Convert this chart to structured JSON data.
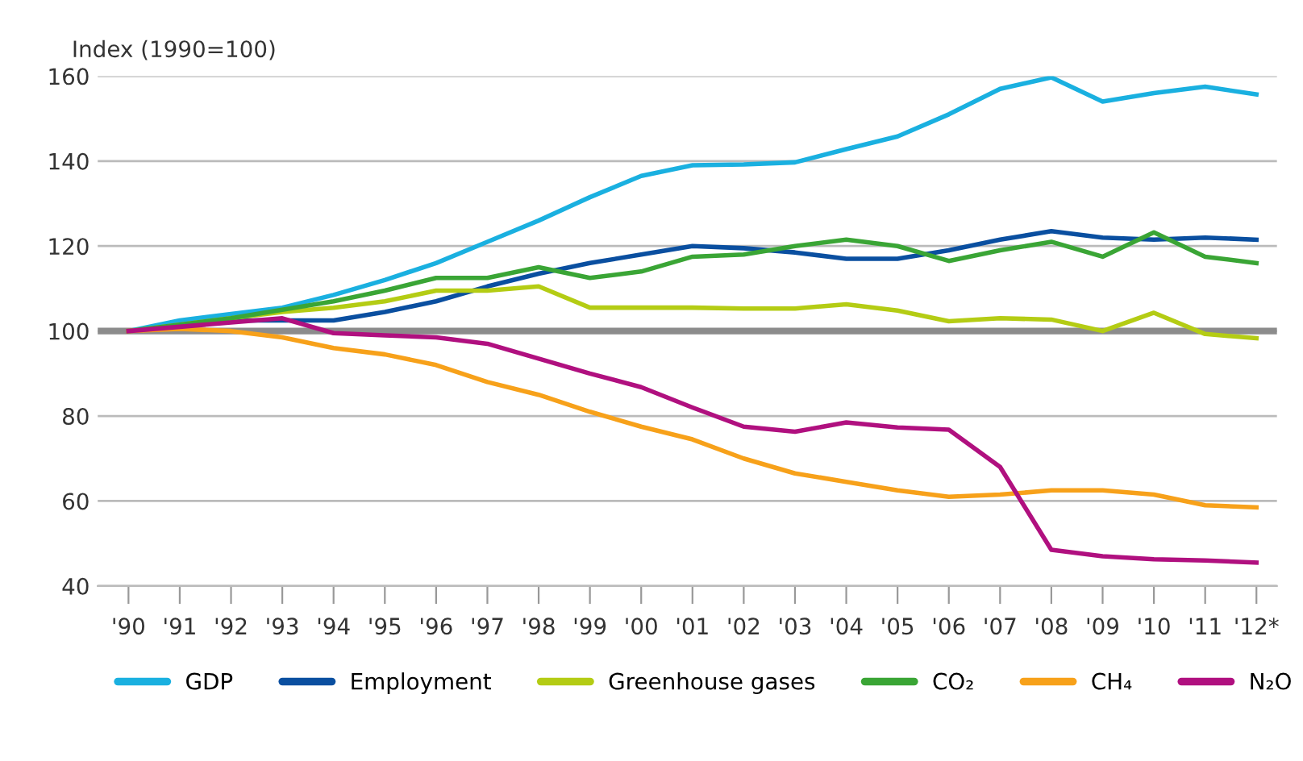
{
  "chart_data": {
    "type": "line",
    "ylabel": "Index (1990=100)",
    "categories": [
      "'90",
      "'91",
      "'92",
      "'93",
      "'94",
      "'95",
      "'96",
      "'97",
      "'98",
      "'99",
      "'00",
      "'01",
      "'02",
      "'03",
      "'04",
      "'05",
      "'06",
      "'07",
      "'08",
      "'09",
      "'10",
      "'11",
      "'12*"
    ],
    "series": [
      {
        "name": "GDP",
        "color": "#1ab0e0",
        "values": [
          100,
          102.5,
          104,
          105.5,
          108.5,
          112,
          116,
          121,
          126,
          131.5,
          136.5,
          139,
          139.2,
          139.7,
          142.8,
          145.8,
          151,
          157,
          159.7,
          154,
          156,
          157.5,
          155.7
        ]
      },
      {
        "name": "Employment",
        "color": "#0a4fa0",
        "values": [
          null,
          101,
          102.5,
          102.5,
          102.5,
          104.5,
          107,
          110.5,
          113.5,
          116,
          118,
          120,
          119.5,
          118.5,
          117,
          117,
          119,
          121.5,
          123.5,
          122,
          121.5,
          122,
          121.5
        ]
      },
      {
        "name": "Greenhouse gases",
        "color": "#b4cc14",
        "values": [
          100,
          101.5,
          103,
          104.5,
          105.5,
          107,
          109.5,
          109.5,
          110.5,
          105.5,
          105.5,
          105.5,
          105.3,
          105.3,
          106.3,
          104.8,
          102.3,
          103,
          102.7,
          100,
          104.3,
          99.3,
          98.3
        ]
      },
      {
        "name": "CO₂",
        "color": "#3aa535",
        "values": [
          100,
          101.5,
          103,
          105,
          107,
          109.5,
          112.5,
          112.5,
          115,
          112.5,
          114,
          117.5,
          118,
          120,
          121.5,
          120,
          116.5,
          119,
          121,
          117.5,
          123.2,
          117.5,
          116
        ]
      },
      {
        "name": "CH₄",
        "color": "#f7a11a",
        "values": [
          100,
          100.5,
          100,
          98.5,
          96,
          94.5,
          92,
          88,
          85,
          81,
          77.5,
          74.5,
          70,
          66.5,
          64.5,
          62.5,
          61,
          61.5,
          62.5,
          62.5,
          61.5,
          59,
          58.5
        ]
      },
      {
        "name": "N₂O",
        "color": "#b0107f",
        "values": [
          100,
          101,
          102,
          103,
          99.5,
          99,
          98.5,
          97,
          93.5,
          90,
          86.8,
          82,
          77.5,
          76.3,
          78.5,
          77.3,
          76.8,
          68,
          48.5,
          47,
          46.3,
          46,
          45.5
        ]
      }
    ],
    "ylim": [
      40,
      160
    ],
    "yticks": [
      40,
      60,
      80,
      100,
      120,
      140,
      160
    ],
    "grid": "y",
    "legend": "bottom",
    "ref_lines": [
      {
        "axis": "y",
        "value": 100,
        "color": "#8c8c8c"
      }
    ]
  }
}
